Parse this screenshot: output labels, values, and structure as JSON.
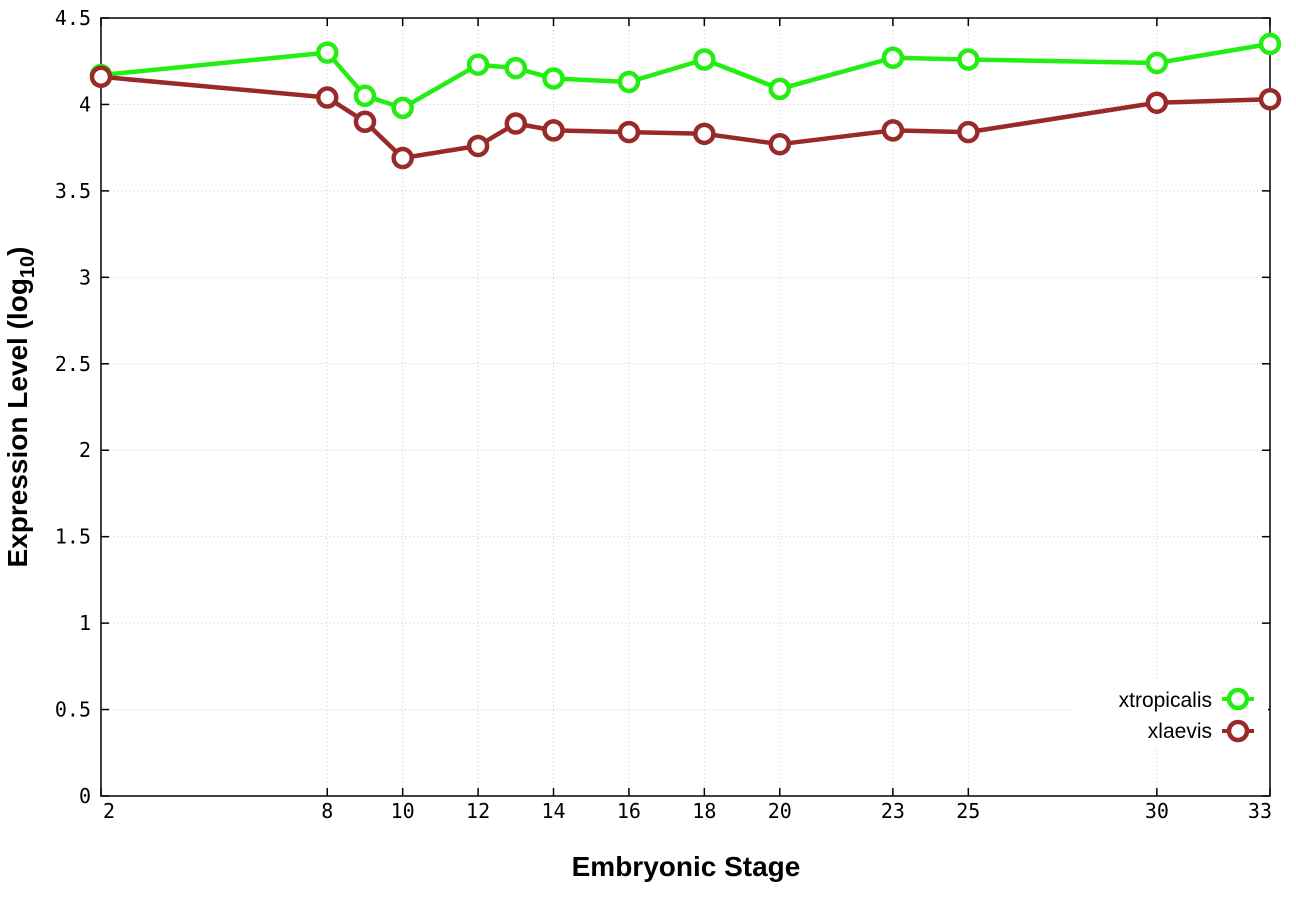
{
  "chart_data": {
    "type": "line",
    "xlabel": "Embryonic Stage",
    "ylabel_main": "Expression Level (log",
    "ylabel_sub": "10",
    "ylabel_close": ")",
    "xlim": [
      2,
      33
    ],
    "ylim": [
      0,
      4.5
    ],
    "x_ticks": [
      2,
      8,
      10,
      12,
      14,
      16,
      18,
      20,
      23,
      25,
      30,
      33
    ],
    "x_tick_labels": [
      "2",
      "8",
      "10",
      "12",
      "14",
      "16",
      "18",
      "20",
      "23",
      "25",
      "30",
      "33"
    ],
    "y_ticks": [
      0,
      0.5,
      1,
      1.5,
      2,
      2.5,
      3,
      3.5,
      4,
      4.5
    ],
    "y_tick_labels": [
      "0",
      "0.5",
      "1",
      "1.5",
      "2",
      "2.5",
      "3",
      "3.5",
      "4",
      "4.5"
    ],
    "grid": true,
    "legend_position": "bottom-right",
    "x": [
      2,
      8,
      9,
      10,
      12,
      13,
      14,
      16,
      18,
      20,
      23,
      25,
      30,
      33
    ],
    "series": [
      {
        "name": "xtropicalis",
        "color": "#22ee11",
        "values": [
          4.17,
          4.3,
          4.05,
          3.98,
          4.23,
          4.21,
          4.15,
          4.13,
          4.26,
          4.09,
          4.27,
          4.26,
          4.24,
          4.35
        ]
      },
      {
        "name": "xlaevis",
        "color": "#992a2a",
        "values": [
          4.16,
          4.04,
          3.9,
          3.69,
          3.76,
          3.89,
          3.85,
          3.84,
          3.83,
          3.77,
          3.85,
          3.84,
          4.01,
          4.03
        ]
      }
    ]
  }
}
